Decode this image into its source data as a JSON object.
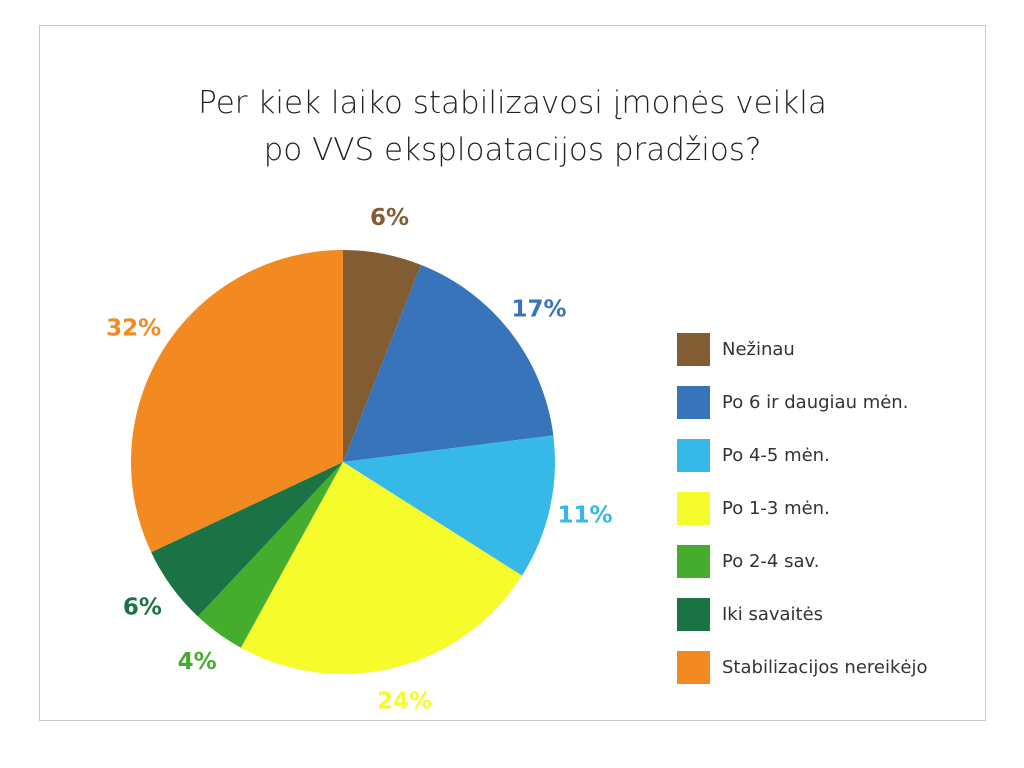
{
  "chart_data": {
    "type": "pie",
    "title_lines": [
      "Per kiek laiko stabilizavosi įmonės veikla",
      "po VVS eksploatacijos pradžios?"
    ],
    "slices": [
      {
        "label": "Nežinau",
        "value": 6,
        "pct_label": "6%",
        "color": "#825c33"
      },
      {
        "label": "Po 6 ir daugiau mėn.",
        "value": 17,
        "pct_label": "17%",
        "color": "#3874b9"
      },
      {
        "label": "Po 4-5 mėn.",
        "value": 11,
        "pct_label": "11%",
        "color": "#36b8e8"
      },
      {
        "label": "Po 1-3 mėn.",
        "value": 24,
        "pct_label": "24%",
        "color": "#f6fb2b"
      },
      {
        "label": "Po 2-4 sav.",
        "value": 4,
        "pct_label": "4%",
        "color": "#44ad2d"
      },
      {
        "label": "Iki savaitės",
        "value": 6,
        "pct_label": "6%",
        "color": "#1a7245"
      },
      {
        "label": "Stabilizacijos nereikėjo",
        "value": 32,
        "pct_label": "32%",
        "color": "#f28a21"
      }
    ],
    "legend_position": "right"
  }
}
